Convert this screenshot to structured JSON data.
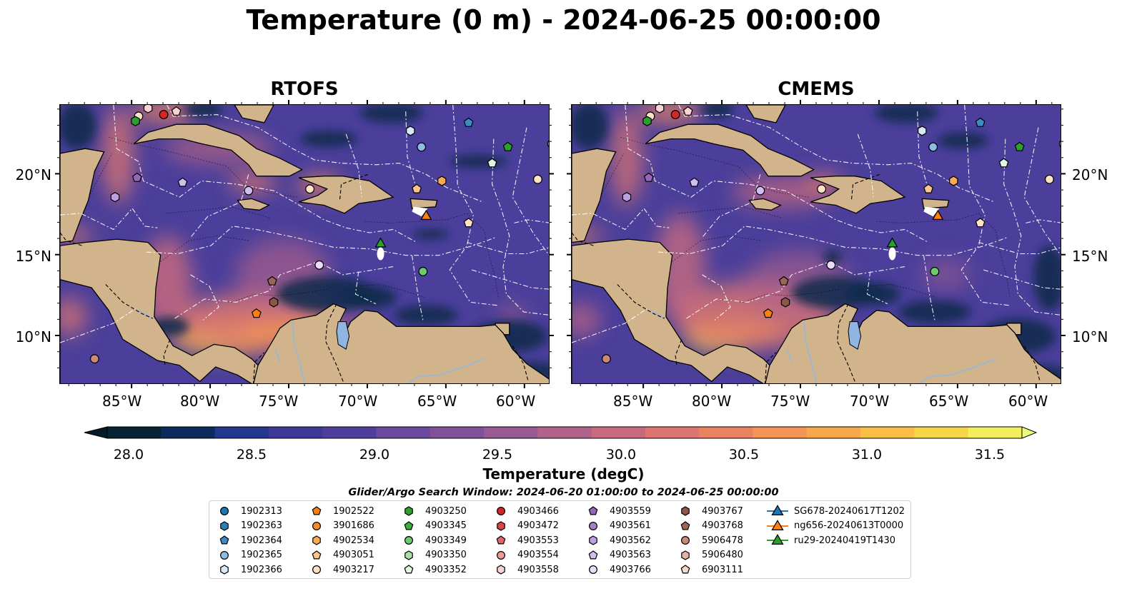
{
  "title": "Temperature (0 m) - 2024-06-25 00:00:00",
  "panels": [
    {
      "title": "RTOFS"
    },
    {
      "title": "CMEMS"
    }
  ],
  "axes": {
    "lon_ticks": [
      "85°W",
      "80°W",
      "75°W",
      "70°W",
      "65°W",
      "60°W"
    ],
    "lat_ticks": [
      "20°N",
      "15°N",
      "10°N"
    ]
  },
  "colorbar": {
    "label": "Temperature (degC)",
    "ticks": [
      "28.0",
      "28.5",
      "29.0",
      "29.5",
      "30.0",
      "30.5",
      "31.0",
      "31.5"
    ],
    "colors": [
      "#062235",
      "#0c2a5c",
      "#23378d",
      "#3c3a96",
      "#503e9c",
      "#6a4a9c",
      "#7f5199",
      "#985a92",
      "#b0628a",
      "#c76a7e",
      "#dd7570",
      "#ea8262",
      "#f49455",
      "#f8a84a",
      "#f9bf44",
      "#f6d649",
      "#f2ee5c"
    ],
    "min_color": "#041b2a",
    "max_color": "#ecff7a"
  },
  "search_window": "Glider/Argo Search Window: 2024-06-20 01:00:00 to 2024-06-25 00:00:00",
  "legend": [
    {
      "label": "1902313",
      "shape": "circle",
      "color": "#1f77b4"
    },
    {
      "label": "1902363",
      "shape": "hexagon",
      "color": "#2a80b9"
    },
    {
      "label": "1902364",
      "shape": "pentagon",
      "color": "#3c8bc4"
    },
    {
      "label": "1902365",
      "shape": "circle",
      "color": "#8bbde5"
    },
    {
      "label": "1902366",
      "shape": "hexagon",
      "color": "#d8e8f7"
    },
    {
      "label": "1902522",
      "shape": "pentagon",
      "color": "#ff7f0e"
    },
    {
      "label": "3901686",
      "shape": "circle",
      "color": "#f58a2e"
    },
    {
      "label": "4902534",
      "shape": "hexagon",
      "color": "#f9aa55"
    },
    {
      "label": "4903051",
      "shape": "pentagon",
      "color": "#fdc58e"
    },
    {
      "label": "4903217",
      "shape": "circle",
      "color": "#fde2c6"
    },
    {
      "label": "4903250",
      "shape": "hexagon",
      "color": "#2ca02c"
    },
    {
      "label": "4903345",
      "shape": "pentagon",
      "color": "#3aae3a"
    },
    {
      "label": "4903349",
      "shape": "circle",
      "color": "#6dcb6d"
    },
    {
      "label": "4903350",
      "shape": "hexagon",
      "color": "#a5e0a5"
    },
    {
      "label": "4903352",
      "shape": "pentagon",
      "color": "#dff5df"
    },
    {
      "label": "4903466",
      "shape": "circle",
      "color": "#d62728"
    },
    {
      "label": "4903472",
      "shape": "hexagon",
      "color": "#dc4445"
    },
    {
      "label": "4903553",
      "shape": "pentagon",
      "color": "#e36666"
    },
    {
      "label": "4903554",
      "shape": "circle",
      "color": "#ee9a9a"
    },
    {
      "label": "4903558",
      "shape": "hexagon",
      "color": "#f8d3d3"
    },
    {
      "label": "4903559",
      "shape": "pentagon",
      "color": "#9467bd"
    },
    {
      "label": "4903561",
      "shape": "circle",
      "color": "#a57ccc"
    },
    {
      "label": "4903562",
      "shape": "hexagon",
      "color": "#bd9ee0"
    },
    {
      "label": "4903563",
      "shape": "pentagon",
      "color": "#d2bdf0"
    },
    {
      "label": "4903766",
      "shape": "circle",
      "color": "#ecdcfb"
    },
    {
      "label": "4903767",
      "shape": "hexagon",
      "color": "#8c564b"
    },
    {
      "label": "4903768",
      "shape": "pentagon",
      "color": "#9c6657"
    },
    {
      "label": "5906478",
      "shape": "circle",
      "color": "#c98a7a"
    },
    {
      "label": "5906480",
      "shape": "hexagon",
      "color": "#e3b4a4"
    },
    {
      "label": "6903111",
      "shape": "pentagon",
      "color": "#f7d8cd"
    },
    {
      "label": "SG678-20240617T1202",
      "shape": "triangle-line",
      "color": "#1f77b4"
    },
    {
      "label": "ng656-20240613T0000",
      "shape": "triangle-line",
      "color": "#ff7f0e"
    },
    {
      "label": "ru29-20240419T1430",
      "shape": "triangle-line",
      "color": "#2ca02c"
    }
  ],
  "markers": [
    {
      "shape": "circle",
      "color": "#fde2c6",
      "lon": -84.6,
      "lat": 23.6
    },
    {
      "shape": "hexagon",
      "color": "#f8d3d3",
      "lon": -84.0,
      "lat": 24.1
    },
    {
      "shape": "circle",
      "color": "#d62728",
      "lon": -83.0,
      "lat": 23.7
    },
    {
      "shape": "pentagon",
      "color": "#f8d3d3",
      "lon": -82.2,
      "lat": 23.9
    },
    {
      "shape": "hexagon",
      "color": "#2ca02c",
      "lon": -84.8,
      "lat": 23.3
    },
    {
      "shape": "circle",
      "color": "#8bbde5",
      "lon": -66.6,
      "lat": 21.7
    },
    {
      "shape": "hexagon",
      "color": "#d8e8f7",
      "lon": -67.3,
      "lat": 22.7
    },
    {
      "shape": "pentagon",
      "color": "#3c8bc4",
      "lon": -63.6,
      "lat": 23.2
    },
    {
      "shape": "pentagon",
      "color": "#2ca02c",
      "lon": -61.1,
      "lat": 21.7
    },
    {
      "shape": "circle",
      "color": "#ff7f0e",
      "lon": -58.3,
      "lat": 21.9
    },
    {
      "shape": "pentagon",
      "color": "#dff5df",
      "lon": -62.1,
      "lat": 20.7
    },
    {
      "shape": "circle",
      "color": "#fde2c6",
      "lon": -59.2,
      "lat": 19.7
    },
    {
      "shape": "pentagon",
      "color": "#9467bd",
      "lon": -84.7,
      "lat": 19.8
    },
    {
      "shape": "pentagon",
      "color": "#d2bdf0",
      "lon": -81.8,
      "lat": 19.5
    },
    {
      "shape": "circle",
      "color": "#d2bdf0",
      "lon": -77.6,
      "lat": 19.0
    },
    {
      "shape": "hexagon",
      "color": "#bd9ee0",
      "lon": -86.1,
      "lat": 18.6
    },
    {
      "shape": "circle",
      "color": "#fde2c6",
      "lon": -73.7,
      "lat": 19.1
    },
    {
      "shape": "pentagon",
      "color": "#fdc58e",
      "lon": -66.9,
      "lat": 19.1
    },
    {
      "shape": "hexagon",
      "color": "#f9aa55",
      "lon": -65.3,
      "lat": 19.6
    },
    {
      "shape": "pentagon",
      "color": "#fde2c6",
      "lon": -63.6,
      "lat": 17.0
    },
    {
      "shape": "circle",
      "color": "#ecdcfb",
      "lon": -73.1,
      "lat": 14.4
    },
    {
      "shape": "circle",
      "color": "#6dcb6d",
      "lon": -66.5,
      "lat": 14.0
    },
    {
      "shape": "pentagon",
      "color": "#9c6657",
      "lon": -76.1,
      "lat": 13.4
    },
    {
      "shape": "hexagon",
      "color": "#8c564b",
      "lon": -76.0,
      "lat": 12.1
    },
    {
      "shape": "pentagon",
      "color": "#ff7f0e",
      "lon": -77.1,
      "lat": 11.4
    },
    {
      "shape": "circle",
      "color": "#c98a7a",
      "lon": -87.4,
      "lat": 8.6
    },
    {
      "shape": "triangle",
      "color": "#ff7f0e",
      "lon": -66.3,
      "lat": 17.4
    },
    {
      "shape": "triangle",
      "color": "#2ca02c",
      "lon": -69.2,
      "lat": 15.7
    }
  ]
}
